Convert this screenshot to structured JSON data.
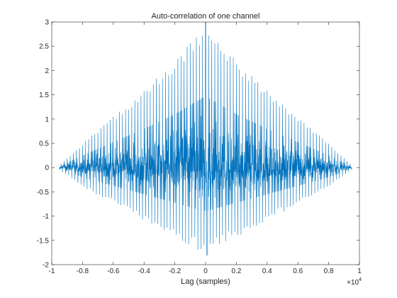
{
  "chart_data": {
    "type": "line",
    "title": "Auto-correlation of one channel",
    "xlabel": "Lag (samples)",
    "ylabel": "",
    "x_exponent_label": "×10",
    "x_exponent_power": "4",
    "xlim": [
      -1,
      1
    ],
    "ylim": [
      -2,
      3
    ],
    "xticks": [
      -1,
      -0.8,
      -0.6,
      -0.4,
      -0.2,
      0,
      0.2,
      0.4,
      0.6,
      0.8,
      1
    ],
    "xtick_labels": [
      "-1",
      "-0.8",
      "-0.6",
      "-0.4",
      "-0.2",
      "0",
      "0.2",
      "0.4",
      "0.6",
      "0.8",
      "1"
    ],
    "yticks": [
      -2,
      -1.5,
      -1,
      -0.5,
      0,
      0.5,
      1,
      1.5,
      2,
      2.5,
      3
    ],
    "ytick_labels": [
      "-2",
      "-1.5",
      "-1",
      "-0.5",
      "0",
      "0.5",
      "1",
      "1.5",
      "2",
      "2.5",
      "3"
    ],
    "grid": false,
    "box": true,
    "series": [
      {
        "color": "#0072bd",
        "x_range": [
          -0.95,
          0.95
        ],
        "peak_value": 3.0,
        "min_value": -1.8,
        "envelope": {
          "x": [
            -0.95,
            -0.8,
            -0.6,
            -0.4,
            -0.2,
            0,
            0.2,
            0.4,
            0.6,
            0.8,
            0.95
          ],
          "upper": [
            0.05,
            0.5,
            1.05,
            1.6,
            2.2,
            2.95,
            2.2,
            1.6,
            1.05,
            0.5,
            0.05
          ],
          "lower": [
            -0.05,
            -0.4,
            -0.75,
            -1.1,
            -1.45,
            -1.8,
            -1.45,
            -1.1,
            -0.75,
            -0.4,
            -0.05
          ]
        }
      }
    ]
  }
}
